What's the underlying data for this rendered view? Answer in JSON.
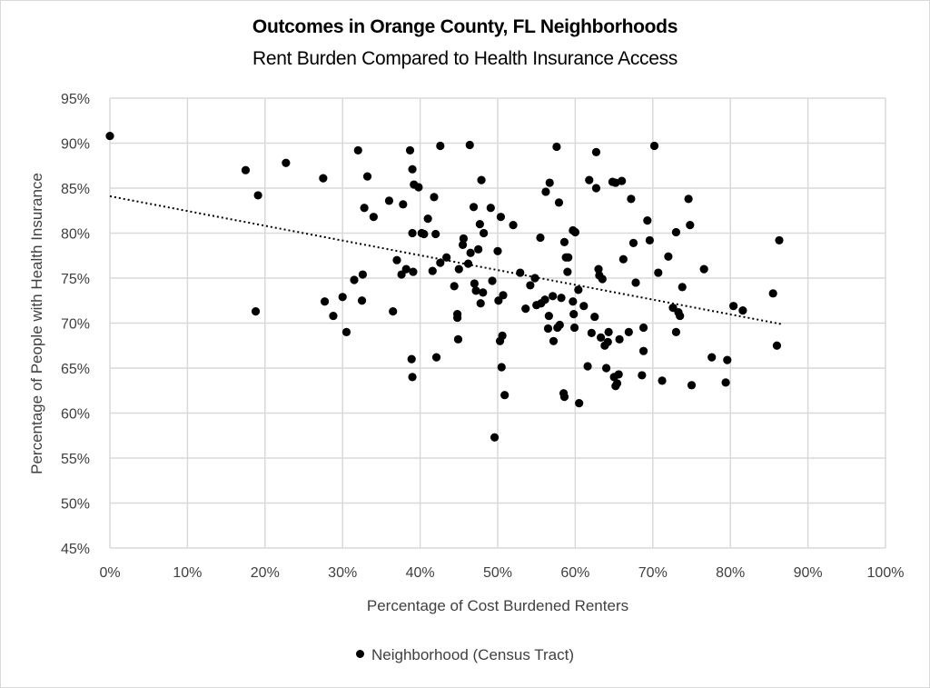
{
  "chart_data": {
    "type": "scatter",
    "title": "Outcomes in Orange County, FL Neighborhoods",
    "subtitle": "Rent Burden Compared to Health Insurance Access",
    "xlabel": "Percentage of Cost Burdened Renters",
    "ylabel": "Percentage of People with  Health Insurance",
    "xlim": [
      0,
      100
    ],
    "ylim": [
      45,
      95
    ],
    "xticks": [
      "0%",
      "10%",
      "20%",
      "30%",
      "40%",
      "50%",
      "60%",
      "70%",
      "80%",
      "90%",
      "100%"
    ],
    "yticks": [
      "45%",
      "50%",
      "55%",
      "60%",
      "65%",
      "70%",
      "75%",
      "80%",
      "85%",
      "90%",
      "95%"
    ],
    "grid": true,
    "legend": {
      "position": "bottom",
      "entries": [
        "Neighborhood (Census Tract)"
      ]
    },
    "trendline": {
      "type": "linear",
      "style": "dotted",
      "x": [
        0,
        86.5
      ],
      "y": [
        84.1,
        69.9
      ]
    },
    "series": [
      {
        "name": "Neighborhood (Census Tract)",
        "points": [
          [
            0,
            90.8
          ],
          [
            17.5,
            87
          ],
          [
            19.1,
            84.2
          ],
          [
            18.8,
            71.3
          ],
          [
            22.7,
            87.8
          ],
          [
            27.5,
            86.1
          ],
          [
            27.7,
            72.4
          ],
          [
            28.8,
            70.8
          ],
          [
            30.0,
            72.9
          ],
          [
            30.5,
            69.0
          ],
          [
            31.5,
            74.8
          ],
          [
            32.0,
            89.2
          ],
          [
            32.5,
            72.5
          ],
          [
            32.6,
            75.4
          ],
          [
            32.8,
            82.8
          ],
          [
            33.2,
            86.3
          ],
          [
            34.0,
            81.8
          ],
          [
            36.0,
            83.6
          ],
          [
            36.5,
            71.3
          ],
          [
            37.0,
            77.0
          ],
          [
            37.6,
            75.4
          ],
          [
            37.8,
            83.2
          ],
          [
            38.2,
            76.0
          ],
          [
            38.7,
            89.2
          ],
          [
            39.0,
            87.1
          ],
          [
            39.0,
            80.0
          ],
          [
            39.1,
            75.7
          ],
          [
            39.2,
            85.4
          ],
          [
            38.9,
            66.0
          ],
          [
            39.0,
            64.0
          ],
          [
            39.8,
            85.1
          ],
          [
            40.2,
            80.0
          ],
          [
            40.5,
            79.9
          ],
          [
            41.0,
            81.6
          ],
          [
            41.6,
            75.8
          ],
          [
            41.8,
            84.0
          ],
          [
            42.0,
            79.9
          ],
          [
            42.1,
            66.2
          ],
          [
            42.6,
            76.7
          ],
          [
            42.6,
            89.7
          ],
          [
            43.4,
            77.3
          ],
          [
            44.4,
            74.1
          ],
          [
            44.8,
            71.0
          ],
          [
            44.8,
            70.6
          ],
          [
            45.0,
            76.0
          ],
          [
            44.9,
            68.2
          ],
          [
            45.5,
            78.7
          ],
          [
            45.6,
            79.4
          ],
          [
            46.2,
            76.6
          ],
          [
            46.4,
            89.8
          ],
          [
            46.5,
            77.8
          ],
          [
            46.9,
            82.9
          ],
          [
            47.0,
            74.4
          ],
          [
            47.2,
            73.6
          ],
          [
            47.5,
            78.2
          ],
          [
            47.7,
            81.0
          ],
          [
            47.8,
            72.2
          ],
          [
            47.9,
            85.9
          ],
          [
            48.1,
            73.4
          ],
          [
            48.2,
            80.0
          ],
          [
            49.1,
            82.8
          ],
          [
            49.3,
            74.7
          ],
          [
            49.6,
            57.3
          ],
          [
            50.0,
            78.0
          ],
          [
            50.1,
            72.5
          ],
          [
            50.4,
            81.8
          ],
          [
            50.3,
            68.0
          ],
          [
            50.6,
            68.6
          ],
          [
            50.5,
            65.1
          ],
          [
            50.7,
            73.1
          ],
          [
            50.9,
            62.0
          ],
          [
            52.0,
            80.9
          ],
          [
            52.9,
            75.6
          ],
          [
            53.6,
            71.6
          ],
          [
            54.2,
            74.2
          ],
          [
            54.8,
            75.0
          ],
          [
            55.0,
            72.0
          ],
          [
            55.5,
            79.5
          ],
          [
            55.6,
            72.2
          ],
          [
            56.1,
            72.6
          ],
          [
            56.2,
            84.6
          ],
          [
            56.5,
            69.4
          ],
          [
            56.6,
            70.8
          ],
          [
            56.7,
            85.6
          ],
          [
            57.1,
            73.0
          ],
          [
            57.2,
            68.0
          ],
          [
            57.6,
            89.6
          ],
          [
            57.7,
            69.5
          ],
          [
            57.9,
            83.4
          ],
          [
            58.0,
            69.8
          ],
          [
            58.2,
            72.8
          ],
          [
            58.6,
            79.0
          ],
          [
            58.5,
            62.2
          ],
          [
            58.6,
            61.8
          ],
          [
            58.8,
            77.3
          ],
          [
            59.0,
            75.7
          ],
          [
            59.1,
            77.3
          ],
          [
            59.7,
            80.3
          ],
          [
            59.7,
            72.4
          ],
          [
            59.8,
            71.0
          ],
          [
            60.0,
            80.1
          ],
          [
            59.9,
            69.5
          ],
          [
            60.4,
            73.7
          ],
          [
            60.5,
            61.1
          ],
          [
            61.1,
            71.9
          ],
          [
            61.6,
            65.2
          ],
          [
            61.8,
            85.9
          ],
          [
            62.1,
            68.9
          ],
          [
            62.5,
            70.7
          ],
          [
            62.7,
            85.0
          ],
          [
            62.7,
            89.0
          ],
          [
            63.0,
            76.0
          ],
          [
            63.1,
            75.3
          ],
          [
            63.3,
            68.4
          ],
          [
            63.5,
            74.9
          ],
          [
            63.8,
            67.5
          ],
          [
            64.0,
            65.0
          ],
          [
            64.2,
            67.9
          ],
          [
            64.3,
            69.0
          ],
          [
            64.8,
            85.7
          ],
          [
            65.0,
            64.0
          ],
          [
            65.2,
            85.6
          ],
          [
            65.2,
            63.0
          ],
          [
            65.4,
            63.3
          ],
          [
            65.6,
            64.3
          ],
          [
            65.7,
            68.2
          ],
          [
            66.0,
            85.8
          ],
          [
            66.2,
            77.1
          ],
          [
            66.9,
            69.0
          ],
          [
            67.2,
            83.8
          ],
          [
            67.5,
            78.9
          ],
          [
            67.8,
            74.5
          ],
          [
            68.6,
            64.2
          ],
          [
            68.8,
            69.5
          ],
          [
            68.8,
            66.9
          ],
          [
            69.3,
            81.4
          ],
          [
            69.6,
            79.2
          ],
          [
            70.2,
            89.7
          ],
          [
            70.7,
            75.6
          ],
          [
            71.2,
            63.6
          ],
          [
            72.0,
            77.4
          ],
          [
            72.6,
            71.7
          ],
          [
            73.0,
            80.1
          ],
          [
            73.0,
            69.0
          ],
          [
            73.3,
            71.2
          ],
          [
            73.5,
            70.8
          ],
          [
            73.8,
            74.0
          ],
          [
            74.6,
            83.8
          ],
          [
            74.8,
            80.9
          ],
          [
            75.0,
            63.1
          ],
          [
            76.6,
            76.0
          ],
          [
            77.6,
            66.2
          ],
          [
            79.4,
            63.4
          ],
          [
            79.6,
            65.9
          ],
          [
            80.4,
            71.9
          ],
          [
            81.6,
            71.4
          ],
          [
            85.5,
            73.3
          ],
          [
            86.0,
            67.5
          ],
          [
            86.3,
            79.2
          ]
        ]
      }
    ]
  }
}
